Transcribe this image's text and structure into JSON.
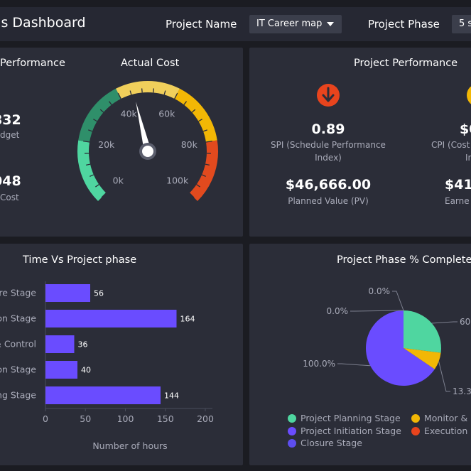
{
  "header": {
    "title": "tus Dashboard",
    "project_name_label": "Project Name",
    "project_name_value": "IT Career map",
    "project_phase_label": "Project Phase",
    "project_phase_value": "5 s"
  },
  "cost_panel": {
    "title_left": "Performance",
    "title_gauge": "Actual Cost",
    "budget_value": "832",
    "budget_label": "dget",
    "cost_value": "048",
    "cost_label": "Cost",
    "gauge": {
      "min": 0,
      "max": 100000,
      "value": 45000,
      "tick_labels": [
        "0k",
        "20k",
        "40k",
        "60k",
        "80k",
        "100k"
      ],
      "bands": [
        {
          "from": 0,
          "to": 20000,
          "color": "#4fd6a0"
        },
        {
          "from": 20000,
          "to": 40000,
          "color": "#2f8f6a"
        },
        {
          "from": 40000,
          "to": 60000,
          "color": "#f0cf5b"
        },
        {
          "from": 60000,
          "to": 80000,
          "color": "#f2b705"
        },
        {
          "from": 80000,
          "to": 100000,
          "color": "#e24a1e"
        }
      ]
    }
  },
  "performance_panel": {
    "title": "Project Performance",
    "spi_value": "0.89",
    "spi_label": "SPI (Schedule Performance Index)",
    "spi_icon": "arrow-down-circle-icon",
    "spi_icon_color": "#e8441d",
    "cpi_value": "$0",
    "cpi_label_1": "CPI (Cost",
    "cpi_label_2": "In",
    "cpi_icon_color": "#f2b705",
    "pv_value": "$46,666.00",
    "pv_label": "Planned Value (PV)",
    "ev_value": "$41,",
    "ev_label": "Earne"
  },
  "time_panel": {
    "title": "Time Vs Project phase",
    "xlabel": "Number of hours",
    "chart_data": {
      "type": "bar",
      "orientation": "horizontal",
      "categories": [
        "ure Stage",
        "on Stage",
        "& Control",
        "on Stage",
        "ng Stage"
      ],
      "values": [
        56,
        164,
        36,
        40,
        144
      ],
      "xlabel": "Number of hours",
      "xlim": [
        0,
        200
      ],
      "x_ticks": [
        0,
        50,
        100,
        150,
        200
      ],
      "bar_color": "#6a4cff"
    }
  },
  "phase_panel": {
    "title": "Project Phase % Completed",
    "chart_data": {
      "type": "pie",
      "slices": [
        {
          "name": "Project Planning Stage",
          "value": 27,
          "label": "60",
          "color": "#4fd6a0"
        },
        {
          "name": "Monitor & C",
          "value": 7.5,
          "label": "13.3",
          "color": "#f2b705"
        },
        {
          "name": "Project Initiation Stage",
          "value": 65.5,
          "label": "100.0%",
          "color": "#6a4cff"
        },
        {
          "name": "Execution S",
          "value": 0,
          "label": "0.0%",
          "color": "#e8441d"
        },
        {
          "name": "Closure Stage",
          "value": 0,
          "label": "0.0%",
          "color": "#5d4ef0"
        }
      ]
    }
  }
}
